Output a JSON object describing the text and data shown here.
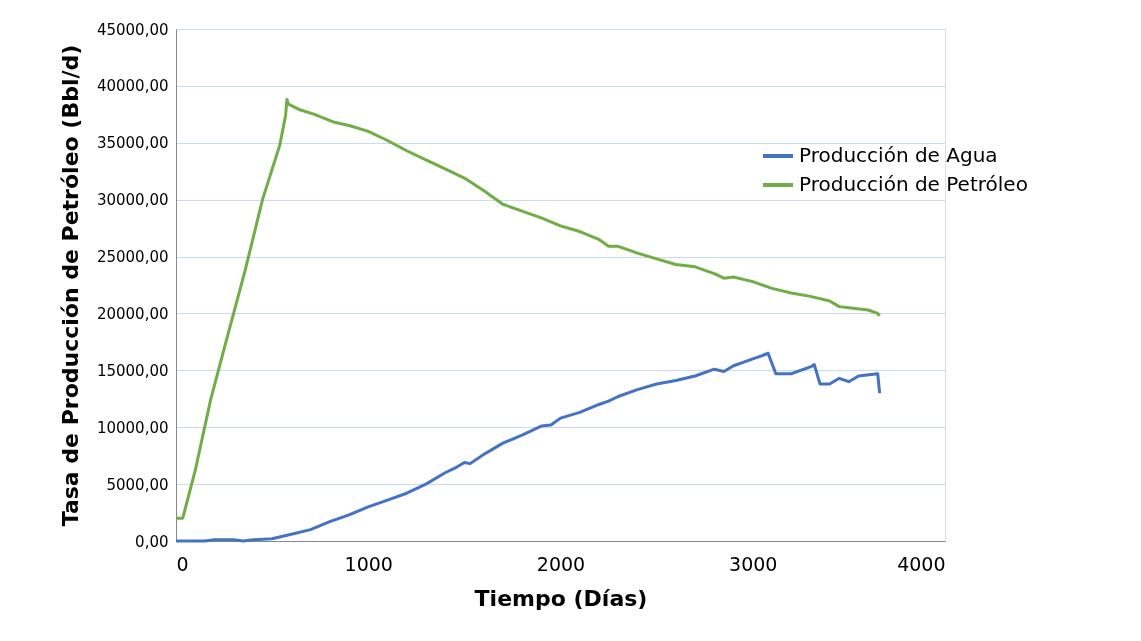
{
  "chart_data": {
    "type": "line",
    "xlabel": "Tiempo (Días)",
    "ylabel": "Tasa de Producción de Petróleo (Bbl/d)",
    "xlim": [
      0,
      4000
    ],
    "xticks": [
      0,
      1000,
      2000,
      3000,
      4000
    ],
    "ylim": [
      0,
      45000
    ],
    "yticks": [
      {
        "value": 0,
        "label": "0,00"
      },
      {
        "value": 5000,
        "label": "5000,00"
      },
      {
        "value": 10000,
        "label": "10000,00"
      },
      {
        "value": 15000,
        "label": "15000,00"
      },
      {
        "value": 20000,
        "label": "20000,00"
      },
      {
        "value": 25000,
        "label": "25000,00"
      },
      {
        "value": 30000,
        "label": "30000,00"
      },
      {
        "value": 35000,
        "label": "35000,00"
      },
      {
        "value": 40000,
        "label": "40000,00"
      },
      {
        "value": 45000,
        "label": "45000,00"
      }
    ],
    "grid": "y",
    "legend": "right",
    "marker": "none",
    "line_style": "solid",
    "series": [
      {
        "name": "Producción de Agua",
        "color": "#4472c4",
        "x": [
          0,
          150,
          200,
          300,
          350,
          400,
          500,
          600,
          700,
          800,
          900,
          1000,
          1100,
          1200,
          1300,
          1400,
          1450,
          1500,
          1530,
          1600,
          1650,
          1700,
          1800,
          1900,
          1950,
          2000,
          2100,
          2200,
          2250,
          2300,
          2400,
          2500,
          2600,
          2700,
          2800,
          2850,
          2900,
          2950,
          3000,
          3050,
          3080,
          3120,
          3200,
          3300,
          3320,
          3350,
          3400,
          3450,
          3500,
          3550,
          3650,
          3660
        ],
        "values": [
          0,
          0,
          100,
          100,
          0,
          100,
          200,
          600,
          1000,
          1700,
          2300,
          3000,
          3600,
          4200,
          5000,
          6000,
          6400,
          6900,
          6800,
          7600,
          8100,
          8600,
          9300,
          10100,
          10200,
          10800,
          11300,
          12000,
          12300,
          12700,
          13300,
          13800,
          14100,
          14500,
          15100,
          14900,
          15400,
          15700,
          16000,
          16300,
          16500,
          14700,
          14700,
          15300,
          15500,
          13800,
          13800,
          14300,
          14000,
          14500,
          14700,
          13000
        ]
      },
      {
        "name": "Producción de Petróleo",
        "color": "#70ad47",
        "x": [
          0,
          35,
          100,
          180,
          255,
          360,
          450,
          540,
          570,
          577,
          585,
          645,
          720,
          825,
          905,
          1000,
          1100,
          1200,
          1300,
          1400,
          1500,
          1600,
          1700,
          1800,
          1900,
          2000,
          2100,
          2200,
          2250,
          2300,
          2400,
          2500,
          2600,
          2700,
          2800,
          2850,
          2900,
          3000,
          3100,
          3200,
          3300,
          3400,
          3450,
          3500,
          3600,
          3650,
          3660
        ],
        "values": [
          2000,
          2000,
          6200,
          12400,
          17200,
          23800,
          30000,
          34800,
          37400,
          38800,
          38400,
          37900,
          37500,
          36800,
          36500,
          36000,
          35200,
          34300,
          33500,
          32700,
          31900,
          30800,
          29600,
          29000,
          28400,
          27700,
          27200,
          26500,
          25900,
          25900,
          25300,
          24800,
          24300,
          24100,
          23500,
          23100,
          23200,
          22800,
          22200,
          21800,
          21500,
          21100,
          20600,
          20500,
          20300,
          20000,
          19800
        ]
      }
    ]
  }
}
